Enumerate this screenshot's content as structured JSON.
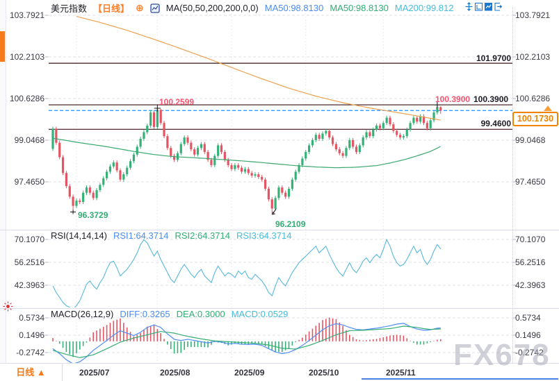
{
  "colors": {
    "up": "#35b177",
    "down": "#e35562",
    "ma50_line": "#3aa76d",
    "ma200_line": "#f0a14f",
    "rsi_line": "#57b8dc",
    "diff_line": "#4f8df5",
    "dea_line": "#35ad74",
    "hist_pos": "#e35562",
    "hist_neg": "#35b177",
    "level_line": "#3a1216",
    "current_dashed": "#1e90ff",
    "accent_orange": "#f57b1c",
    "tag_orange": "#f08300",
    "label_red": "#f05572",
    "label_green": "#2fae74",
    "label_blue": "#4a8cf0",
    "label_cyan": "#45bcd9",
    "watermark_gray": "#a9aaba",
    "toolbar_blue": "#1878d2"
  },
  "header": {
    "title": "美元指数",
    "timeframe": "【日线】",
    "add_icon": "⊕",
    "ma_settings": "MA(50,50,200,200,0,0)",
    "ma50_blue": "MA50:98.8130",
    "ma50_green": "MA50:98.8130",
    "ma200_cyan": "MA200:99.812"
  },
  "rsi_header": {
    "name": "RSI(14,14,14)",
    "rsi1": "RSI1:64.3714",
    "rsi2": "RSI2:64.3714",
    "rsi3": "RSI3:64.3714"
  },
  "macd_header": {
    "name": "MACD(26,12,9)",
    "diff": "DIFF:0.3265",
    "dea": "DEA:0.3000",
    "macd": "MACD:0.0529"
  },
  "axes": {
    "main": [
      "103.7921",
      "102.2103",
      "100.6286",
      "99.0468",
      "97.4650"
    ],
    "rsi": [
      "70.1070",
      "56.2516",
      "42.3963"
    ],
    "macd": [
      "0.5734",
      "0.1496",
      "-0.2742"
    ],
    "months": [
      "2025/07",
      "2025/08",
      "2025/09",
      "2025/10",
      "2025/11"
    ]
  },
  "annotations": {
    "level_high": "101.9700",
    "level_mid_red": "100.3900",
    "level_mid": "100.3900",
    "level_low": "99.4600",
    "swing_high": "100.2599",
    "swing_low_1": "96.3729",
    "swing_low_2": "96.2109",
    "current_price": "100.1730"
  },
  "footer": {
    "timeframe_button": "日线 ▲"
  },
  "watermark": "FX678",
  "chart_data": {
    "type": "candlestick",
    "title": "美元指数 日线 (US Dollar Index, daily)",
    "price_axis": [
      103.7921,
      102.2103,
      100.6286,
      99.0468,
      97.465
    ],
    "months": [
      "2025/07",
      "2025/08",
      "2025/09",
      "2025/10",
      "2025/11"
    ],
    "month_tick_idx": [
      7,
      31,
      53,
      75,
      98
    ],
    "levels": {
      "lines": [
        101.97,
        100.39,
        99.46
      ],
      "current": 100.173
    },
    "marks": [
      {
        "type": "cross",
        "i": 31,
        "price": 100.2599
      },
      {
        "type": "cross",
        "i": 114,
        "price": 100.39
      },
      {
        "type": "tick",
        "i": 6,
        "price": 96.3729
      },
      {
        "type": "arrow",
        "i": 65,
        "price": 96.2109
      }
    ],
    "candles": [
      [
        98.72,
        99.56,
        98.64,
        99.48
      ],
      [
        99.48,
        99.56,
        98.87,
        98.95
      ],
      [
        98.95,
        99.03,
        98.32,
        98.4
      ],
      [
        98.4,
        98.48,
        97.72,
        97.8
      ],
      [
        97.8,
        97.88,
        97.22,
        97.3
      ],
      [
        97.3,
        97.38,
        96.82,
        96.9
      ],
      [
        96.9,
        96.98,
        96.37,
        96.55
      ],
      [
        96.55,
        96.83,
        96.47,
        96.75
      ],
      [
        96.75,
        96.83,
        96.62,
        96.7
      ],
      [
        96.7,
        97.13,
        96.62,
        97.05
      ],
      [
        97.05,
        97.33,
        96.97,
        97.25
      ],
      [
        97.25,
        97.33,
        96.97,
        97.05
      ],
      [
        97.05,
        97.13,
        96.77,
        96.85
      ],
      [
        96.85,
        97.23,
        96.77,
        97.15
      ],
      [
        97.15,
        97.43,
        97.07,
        97.35
      ],
      [
        97.35,
        97.68,
        97.27,
        97.6
      ],
      [
        97.6,
        97.93,
        97.52,
        97.85
      ],
      [
        97.85,
        98.13,
        97.77,
        98.05
      ],
      [
        98.05,
        98.28,
        97.97,
        98.2
      ],
      [
        98.2,
        98.28,
        97.82,
        97.9
      ],
      [
        97.9,
        97.98,
        97.47,
        97.55
      ],
      [
        97.55,
        97.83,
        97.47,
        97.75
      ],
      [
        97.75,
        98.08,
        97.67,
        98.0
      ],
      [
        98.0,
        98.33,
        97.92,
        98.25
      ],
      [
        98.25,
        98.58,
        98.17,
        98.5
      ],
      [
        98.5,
        98.88,
        98.42,
        98.8
      ],
      [
        98.8,
        99.18,
        98.72,
        99.1
      ],
      [
        99.1,
        99.43,
        99.02,
        99.35
      ],
      [
        99.35,
        99.68,
        99.27,
        99.6
      ],
      [
        99.6,
        100.18,
        99.52,
        100.1
      ],
      [
        100.1,
        100.18,
        99.47,
        99.55
      ],
      [
        99.55,
        100.26,
        99.47,
        100.2
      ],
      [
        100.2,
        100.24,
        99.62,
        99.7
      ],
      [
        99.7,
        99.78,
        99.12,
        99.2
      ],
      [
        99.2,
        99.28,
        98.67,
        98.75
      ],
      [
        98.75,
        98.83,
        98.37,
        98.45
      ],
      [
        98.45,
        98.53,
        98.22,
        98.3
      ],
      [
        98.3,
        98.63,
        98.22,
        98.55
      ],
      [
        98.55,
        98.98,
        98.47,
        98.9
      ],
      [
        98.9,
        99.23,
        98.82,
        99.15
      ],
      [
        99.15,
        99.23,
        98.87,
        98.95
      ],
      [
        98.95,
        99.03,
        98.62,
        98.7
      ],
      [
        98.7,
        98.78,
        98.42,
        98.5
      ],
      [
        98.5,
        98.83,
        98.42,
        98.75
      ],
      [
        98.75,
        98.98,
        98.67,
        98.9
      ],
      [
        98.9,
        98.98,
        98.52,
        98.6
      ],
      [
        98.6,
        98.68,
        98.22,
        98.3
      ],
      [
        98.3,
        98.38,
        98.02,
        98.1
      ],
      [
        98.1,
        98.53,
        98.02,
        98.45
      ],
      [
        98.45,
        98.93,
        98.37,
        98.85
      ],
      [
        98.85,
        98.93,
        98.52,
        98.6
      ],
      [
        98.6,
        98.68,
        98.22,
        98.3
      ],
      [
        98.3,
        98.38,
        98.02,
        98.1
      ],
      [
        98.1,
        98.18,
        97.87,
        97.95
      ],
      [
        97.95,
        98.18,
        97.87,
        98.1
      ],
      [
        98.1,
        98.18,
        97.92,
        98.0
      ],
      [
        98.0,
        98.08,
        97.77,
        97.85
      ],
      [
        97.85,
        98.03,
        97.77,
        97.95
      ],
      [
        97.95,
        98.03,
        97.72,
        97.8
      ],
      [
        97.8,
        97.88,
        97.62,
        97.7
      ],
      [
        97.7,
        97.83,
        97.62,
        97.75
      ],
      [
        97.75,
        97.83,
        97.57,
        97.65
      ],
      [
        97.65,
        97.73,
        97.47,
        97.55
      ],
      [
        97.55,
        97.63,
        97.12,
        97.2
      ],
      [
        97.2,
        97.28,
        96.72,
        96.8
      ],
      [
        96.8,
        96.88,
        96.21,
        96.45
      ],
      [
        96.45,
        96.93,
        96.37,
        96.85
      ],
      [
        96.85,
        97.33,
        96.77,
        97.25
      ],
      [
        97.25,
        97.33,
        96.97,
        97.05
      ],
      [
        97.05,
        97.13,
        96.82,
        96.9
      ],
      [
        96.9,
        97.28,
        96.82,
        97.2
      ],
      [
        97.2,
        97.63,
        97.12,
        97.55
      ],
      [
        97.55,
        97.93,
        97.47,
        97.85
      ],
      [
        97.85,
        98.18,
        97.77,
        98.1
      ],
      [
        98.1,
        98.43,
        98.02,
        98.35
      ],
      [
        98.35,
        98.68,
        98.27,
        98.6
      ],
      [
        98.6,
        98.93,
        98.52,
        98.85
      ],
      [
        98.85,
        99.13,
        98.77,
        99.05
      ],
      [
        99.05,
        99.33,
        98.97,
        99.25
      ],
      [
        99.25,
        99.33,
        99.02,
        99.1
      ],
      [
        99.1,
        99.38,
        99.02,
        99.3
      ],
      [
        99.3,
        99.48,
        99.22,
        99.4
      ],
      [
        99.4,
        99.48,
        99.07,
        99.15
      ],
      [
        99.15,
        99.23,
        98.82,
        98.9
      ],
      [
        98.9,
        98.98,
        98.62,
        98.7
      ],
      [
        98.7,
        98.78,
        98.47,
        98.55
      ],
      [
        98.55,
        98.63,
        98.37,
        98.45
      ],
      [
        98.45,
        98.83,
        98.37,
        98.75
      ],
      [
        98.75,
        99.13,
        98.67,
        99.05
      ],
      [
        99.05,
        99.13,
        98.72,
        98.8
      ],
      [
        98.8,
        98.88,
        98.52,
        98.6
      ],
      [
        98.6,
        98.93,
        98.52,
        98.85
      ],
      [
        98.85,
        99.23,
        98.77,
        99.15
      ],
      [
        99.15,
        99.43,
        99.07,
        99.35
      ],
      [
        99.35,
        99.43,
        99.12,
        99.2
      ],
      [
        99.2,
        99.53,
        99.12,
        99.45
      ],
      [
        99.45,
        99.68,
        99.37,
        99.6
      ],
      [
        99.6,
        99.68,
        99.42,
        99.5
      ],
      [
        99.5,
        99.78,
        99.42,
        99.7
      ],
      [
        99.7,
        99.98,
        99.62,
        99.9
      ],
      [
        99.9,
        99.98,
        99.57,
        99.65
      ],
      [
        99.65,
        99.73,
        99.32,
        99.4
      ],
      [
        99.4,
        99.48,
        99.17,
        99.25
      ],
      [
        99.25,
        99.33,
        99.07,
        99.15
      ],
      [
        99.15,
        99.28,
        99.07,
        99.2
      ],
      [
        99.2,
        99.53,
        99.12,
        99.45
      ],
      [
        99.45,
        99.78,
        99.37,
        99.7
      ],
      [
        99.7,
        99.98,
        99.62,
        99.9
      ],
      [
        99.9,
        99.98,
        99.67,
        99.75
      ],
      [
        99.75,
        100.03,
        99.67,
        99.95
      ],
      [
        99.95,
        100.03,
        99.62,
        99.7
      ],
      [
        99.7,
        99.78,
        99.42,
        99.5
      ],
      [
        99.5,
        99.88,
        99.42,
        99.8
      ],
      [
        99.8,
        100.18,
        99.72,
        100.1
      ],
      [
        100.1,
        100.39,
        100.02,
        100.3
      ],
      [
        100.3,
        100.34,
        100.05,
        100.17
      ]
    ],
    "ma50": [
      [
        0,
        99.12
      ],
      [
        8,
        98.95
      ],
      [
        16,
        98.8
      ],
      [
        24,
        98.62
      ],
      [
        30,
        98.5
      ],
      [
        36,
        98.42
      ],
      [
        42,
        98.38
      ],
      [
        48,
        98.33
      ],
      [
        54,
        98.28
      ],
      [
        60,
        98.22
      ],
      [
        66,
        98.15
      ],
      [
        72,
        98.08
      ],
      [
        78,
        98.03
      ],
      [
        84,
        98.0
      ],
      [
        90,
        98.02
      ],
      [
        96,
        98.08
      ],
      [
        100,
        98.18
      ],
      [
        104,
        98.3
      ],
      [
        108,
        98.45
      ],
      [
        112,
        98.62
      ],
      [
        115,
        98.81
      ]
    ],
    "ma200": [
      [
        7,
        103.75
      ],
      [
        14,
        103.52
      ],
      [
        22,
        103.22
      ],
      [
        30,
        102.88
      ],
      [
        38,
        102.52
      ],
      [
        46,
        102.15
      ],
      [
        54,
        101.76
      ],
      [
        62,
        101.38
      ],
      [
        70,
        101.02
      ],
      [
        78,
        100.72
      ],
      [
        86,
        100.47
      ],
      [
        94,
        100.27
      ],
      [
        102,
        100.1
      ],
      [
        108,
        99.97
      ],
      [
        115,
        99.81
      ]
    ],
    "rsi": {
      "axis": [
        70.107,
        56.2516,
        42.3963
      ],
      "values": [
        42,
        38,
        35,
        32,
        30,
        29,
        28,
        30,
        33,
        38,
        43,
        45,
        42,
        40,
        44,
        47,
        52,
        56,
        57,
        53,
        48,
        50,
        52,
        55,
        58,
        62,
        67,
        70,
        68,
        64,
        60,
        63,
        58,
        54,
        50,
        46,
        44,
        48,
        52,
        55,
        52,
        49,
        47,
        50,
        52,
        48,
        46,
        44,
        50,
        54,
        51,
        48,
        50,
        49,
        47,
        51,
        49,
        51,
        47,
        46,
        49,
        47,
        45,
        42,
        38,
        36,
        42,
        47,
        44,
        42,
        46,
        50,
        53,
        56,
        58,
        60,
        62,
        64,
        66,
        62,
        64,
        66,
        61,
        57,
        53,
        50,
        48,
        52,
        56,
        52,
        50,
        53,
        57,
        59,
        56,
        59,
        61,
        59,
        64,
        70,
        66,
        60,
        56,
        54,
        55,
        58,
        62,
        66,
        62,
        64,
        58,
        55,
        58,
        63,
        67,
        64.37
      ]
    },
    "macd": {
      "axis": [
        0.5734,
        0.1496,
        -0.2742
      ],
      "hist_rule": "2*(diff-dea)",
      "diff": [
        [
          0,
          -0.18
        ],
        [
          2,
          -0.3
        ],
        [
          4,
          -0.45
        ],
        [
          6,
          -0.55
        ],
        [
          8,
          -0.5
        ],
        [
          10,
          -0.38
        ],
        [
          12,
          -0.22
        ],
        [
          14,
          -0.1
        ],
        [
          16,
          0.02
        ],
        [
          18,
          0.15
        ],
        [
          20,
          0.26
        ],
        [
          22,
          0.2
        ],
        [
          24,
          0.14
        ],
        [
          26,
          0.22
        ],
        [
          28,
          0.34
        ],
        [
          30,
          0.4
        ],
        [
          32,
          0.34
        ],
        [
          34,
          0.18
        ],
        [
          36,
          0.05
        ],
        [
          38,
          0.02
        ],
        [
          40,
          0.05
        ],
        [
          42,
          0.02
        ],
        [
          44,
          -0.01
        ],
        [
          46,
          -0.04
        ],
        [
          48,
          0.0
        ],
        [
          50,
          -0.02
        ],
        [
          52,
          -0.06
        ],
        [
          54,
          -0.05
        ],
        [
          56,
          -0.07
        ],
        [
          58,
          -0.08
        ],
        [
          60,
          -0.07
        ],
        [
          62,
          -0.1
        ],
        [
          64,
          -0.18
        ],
        [
          66,
          -0.26
        ],
        [
          68,
          -0.3
        ],
        [
          70,
          -0.27
        ],
        [
          72,
          -0.2
        ],
        [
          74,
          -0.1
        ],
        [
          76,
          0.02
        ],
        [
          78,
          0.15
        ],
        [
          80,
          0.28
        ],
        [
          82,
          0.38
        ],
        [
          84,
          0.43
        ],
        [
          86,
          0.4
        ],
        [
          88,
          0.34
        ],
        [
          90,
          0.29
        ],
        [
          92,
          0.28
        ],
        [
          94,
          0.3
        ],
        [
          96,
          0.32
        ],
        [
          98,
          0.35
        ],
        [
          100,
          0.38
        ],
        [
          102,
          0.42
        ],
        [
          104,
          0.44
        ],
        [
          106,
          0.36
        ],
        [
          108,
          0.3
        ],
        [
          110,
          0.27
        ],
        [
          112,
          0.28
        ],
        [
          114,
          0.32
        ],
        [
          115,
          0.3265
        ]
      ],
      "dea": [
        [
          0,
          -0.22
        ],
        [
          4,
          -0.32
        ],
        [
          8,
          -0.4
        ],
        [
          12,
          -0.33
        ],
        [
          16,
          -0.18
        ],
        [
          20,
          -0.02
        ],
        [
          24,
          0.08
        ],
        [
          28,
          0.16
        ],
        [
          32,
          0.24
        ],
        [
          36,
          0.2
        ],
        [
          40,
          0.12
        ],
        [
          44,
          0.06
        ],
        [
          48,
          0.01
        ],
        [
          52,
          -0.01
        ],
        [
          56,
          -0.03
        ],
        [
          60,
          -0.05
        ],
        [
          64,
          -0.09
        ],
        [
          68,
          -0.17
        ],
        [
          72,
          -0.19
        ],
        [
          76,
          -0.1
        ],
        [
          80,
          0.02
        ],
        [
          84,
          0.16
        ],
        [
          88,
          0.26
        ],
        [
          92,
          0.27
        ],
        [
          96,
          0.29
        ],
        [
          100,
          0.31
        ],
        [
          104,
          0.37
        ],
        [
          108,
          0.34
        ],
        [
          110,
          0.31
        ],
        [
          112,
          0.29
        ],
        [
          114,
          0.3
        ],
        [
          115,
          0.3
        ]
      ]
    }
  }
}
